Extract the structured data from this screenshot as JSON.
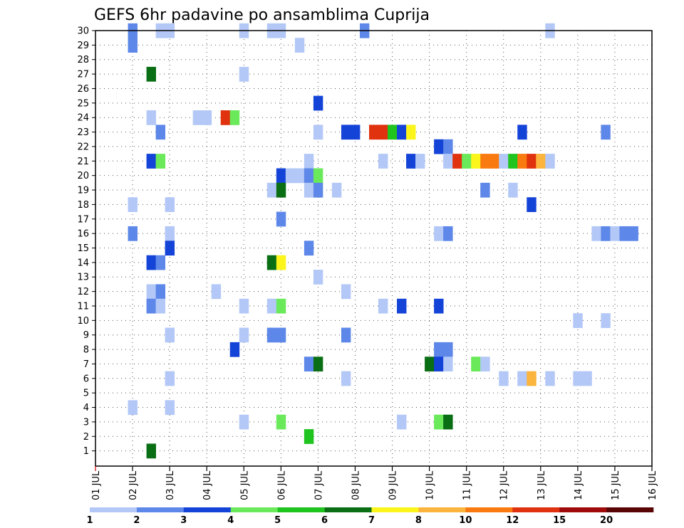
{
  "chart_data": {
    "type": "heatmap",
    "title": "GEFS 6hr padavine po ansamblima Cuprija",
    "xlabel": "",
    "ylabel": "",
    "x_ticks": [
      "01 JUL",
      "02 JUL",
      "03 JUL",
      "04 JUL",
      "05 JUL",
      "06 JUL",
      "07 JUL",
      "08 JUL",
      "09 JUL",
      "10 JUL",
      "11 JUL",
      "12 JUL",
      "13 JUL",
      "14 JUL",
      "15 JUL",
      "16 JUL"
    ],
    "y_ticks": [
      "1",
      "2",
      "3",
      "4",
      "5",
      "6",
      "7",
      "8",
      "9",
      "10",
      "11",
      "12",
      "13",
      "14",
      "15",
      "16",
      "17",
      "18",
      "19",
      "20",
      "21",
      "22",
      "23",
      "24",
      "25",
      "26",
      "27",
      "28",
      "29",
      "30"
    ],
    "xlim": [
      0,
      60
    ],
    "ylim": [
      0,
      30
    ],
    "x_unit": "6-hour steps from 01 JUL 00Z",
    "y_unit": "ensemble member",
    "grid": true,
    "colorbar": {
      "labels": [
        "1",
        "2",
        "3",
        "4",
        "5",
        "6",
        "7",
        "8",
        "10",
        "12",
        "15",
        "20"
      ],
      "colors": [
        "#b3c8f7",
        "#5d87e8",
        "#1443d8",
        "#6aea5a",
        "#1fc41f",
        "#0a6e14",
        "#fbf51c",
        "#fbb43d",
        "#f97a10",
        "#e0320f",
        "#a00a0a",
        "#5a0505"
      ]
    },
    "cells": [
      {
        "t": 4,
        "m": 30,
        "c": 1
      },
      {
        "t": 4,
        "m": 29,
        "c": 1
      },
      {
        "t": 7,
        "m": 30,
        "c": 0
      },
      {
        "t": 8,
        "m": 30,
        "c": 0
      },
      {
        "t": 16,
        "m": 30,
        "c": 0
      },
      {
        "t": 19,
        "m": 30,
        "c": 0
      },
      {
        "t": 20,
        "m": 30,
        "c": 0
      },
      {
        "t": 29,
        "m": 30,
        "c": 1
      },
      {
        "t": 49,
        "m": 30,
        "c": 0
      },
      {
        "t": 22,
        "m": 29,
        "c": 0
      },
      {
        "t": 6,
        "m": 27,
        "c": 5
      },
      {
        "t": 16,
        "m": 27,
        "c": 0
      },
      {
        "t": 24,
        "m": 25,
        "c": 2
      },
      {
        "t": 6,
        "m": 24,
        "c": 0
      },
      {
        "t": 11,
        "m": 24,
        "c": 0
      },
      {
        "t": 12,
        "m": 24,
        "c": 0
      },
      {
        "t": 14,
        "m": 24,
        "c": 9
      },
      {
        "t": 15,
        "m": 24,
        "c": 3
      },
      {
        "t": 7,
        "m": 23,
        "c": 1
      },
      {
        "t": 24,
        "m": 23,
        "c": 0
      },
      {
        "t": 27,
        "m": 23,
        "c": 2
      },
      {
        "t": 28,
        "m": 23,
        "c": 2
      },
      {
        "t": 30,
        "m": 23,
        "c": 9
      },
      {
        "t": 31,
        "m": 23,
        "c": 9
      },
      {
        "t": 32,
        "m": 23,
        "c": 4
      },
      {
        "t": 33,
        "m": 23,
        "c": 2
      },
      {
        "t": 34,
        "m": 23,
        "c": 6
      },
      {
        "t": 46,
        "m": 23,
        "c": 2
      },
      {
        "t": 55,
        "m": 23,
        "c": 1
      },
      {
        "t": 37,
        "m": 22,
        "c": 2
      },
      {
        "t": 38,
        "m": 22,
        "c": 1
      },
      {
        "t": 6,
        "m": 21,
        "c": 2
      },
      {
        "t": 7,
        "m": 21,
        "c": 3
      },
      {
        "t": 23,
        "m": 21,
        "c": 0
      },
      {
        "t": 31,
        "m": 21,
        "c": 0
      },
      {
        "t": 34,
        "m": 21,
        "c": 2
      },
      {
        "t": 35,
        "m": 21,
        "c": 0
      },
      {
        "t": 38,
        "m": 21,
        "c": 0
      },
      {
        "t": 39,
        "m": 21,
        "c": 9
      },
      {
        "t": 40,
        "m": 21,
        "c": 3
      },
      {
        "t": 41,
        "m": 21,
        "c": 6
      },
      {
        "t": 42,
        "m": 21,
        "c": 8
      },
      {
        "t": 43,
        "m": 21,
        "c": 8
      },
      {
        "t": 44,
        "m": 21,
        "c": 0
      },
      {
        "t": 45,
        "m": 21,
        "c": 4
      },
      {
        "t": 46,
        "m": 21,
        "c": 8
      },
      {
        "t": 47,
        "m": 21,
        "c": 9
      },
      {
        "t": 48,
        "m": 21,
        "c": 7
      },
      {
        "t": 49,
        "m": 21,
        "c": 0
      },
      {
        "t": 20,
        "m": 20,
        "c": 2
      },
      {
        "t": 21,
        "m": 20,
        "c": 0
      },
      {
        "t": 22,
        "m": 20,
        "c": 0
      },
      {
        "t": 23,
        "m": 20,
        "c": 1
      },
      {
        "t": 24,
        "m": 20,
        "c": 3
      },
      {
        "t": 19,
        "m": 19,
        "c": 0
      },
      {
        "t": 20,
        "m": 19,
        "c": 5
      },
      {
        "t": 23,
        "m": 19,
        "c": 0
      },
      {
        "t": 24,
        "m": 19,
        "c": 1
      },
      {
        "t": 26,
        "m": 19,
        "c": 0
      },
      {
        "t": 42,
        "m": 19,
        "c": 1
      },
      {
        "t": 45,
        "m": 19,
        "c": 0
      },
      {
        "t": 4,
        "m": 18,
        "c": 0
      },
      {
        "t": 8,
        "m": 18,
        "c": 0
      },
      {
        "t": 47,
        "m": 18,
        "c": 2
      },
      {
        "t": 20,
        "m": 17,
        "c": 1
      },
      {
        "t": 4,
        "m": 16,
        "c": 1
      },
      {
        "t": 8,
        "m": 16,
        "c": 0
      },
      {
        "t": 37,
        "m": 16,
        "c": 0
      },
      {
        "t": 38,
        "m": 16,
        "c": 1
      },
      {
        "t": 54,
        "m": 16,
        "c": 0
      },
      {
        "t": 55,
        "m": 16,
        "c": 1
      },
      {
        "t": 56,
        "m": 16,
        "c": 0
      },
      {
        "t": 57,
        "m": 16,
        "c": 1
      },
      {
        "t": 58,
        "m": 16,
        "c": 1
      },
      {
        "t": 8,
        "m": 15,
        "c": 2
      },
      {
        "t": 23,
        "m": 15,
        "c": 1
      },
      {
        "t": 6,
        "m": 14,
        "c": 2
      },
      {
        "t": 7,
        "m": 14,
        "c": 1
      },
      {
        "t": 19,
        "m": 14,
        "c": 5
      },
      {
        "t": 20,
        "m": 14,
        "c": 6
      },
      {
        "t": 24,
        "m": 13,
        "c": 0
      },
      {
        "t": 6,
        "m": 12,
        "c": 0
      },
      {
        "t": 7,
        "m": 12,
        "c": 1
      },
      {
        "t": 13,
        "m": 12,
        "c": 0
      },
      {
        "t": 27,
        "m": 12,
        "c": 0
      },
      {
        "t": 6,
        "m": 11,
        "c": 1
      },
      {
        "t": 7,
        "m": 11,
        "c": 0
      },
      {
        "t": 16,
        "m": 11,
        "c": 0
      },
      {
        "t": 19,
        "m": 11,
        "c": 0
      },
      {
        "t": 20,
        "m": 11,
        "c": 3
      },
      {
        "t": 31,
        "m": 11,
        "c": 0
      },
      {
        "t": 33,
        "m": 11,
        "c": 2
      },
      {
        "t": 37,
        "m": 11,
        "c": 2
      },
      {
        "t": 52,
        "m": 10,
        "c": 0
      },
      {
        "t": 55,
        "m": 10,
        "c": 0
      },
      {
        "t": 8,
        "m": 9,
        "c": 0
      },
      {
        "t": 16,
        "m": 9,
        "c": 0
      },
      {
        "t": 19,
        "m": 9,
        "c": 1
      },
      {
        "t": 20,
        "m": 9,
        "c": 1
      },
      {
        "t": 27,
        "m": 9,
        "c": 1
      },
      {
        "t": 15,
        "m": 8,
        "c": 2
      },
      {
        "t": 37,
        "m": 8,
        "c": 1
      },
      {
        "t": 38,
        "m": 8,
        "c": 1
      },
      {
        "t": 23,
        "m": 7,
        "c": 1
      },
      {
        "t": 24,
        "m": 7,
        "c": 5
      },
      {
        "t": 36,
        "m": 7,
        "c": 5
      },
      {
        "t": 37,
        "m": 7,
        "c": 2
      },
      {
        "t": 38,
        "m": 7,
        "c": 0
      },
      {
        "t": 41,
        "m": 7,
        "c": 3
      },
      {
        "t": 42,
        "m": 7,
        "c": 0
      },
      {
        "t": 8,
        "m": 6,
        "c": 0
      },
      {
        "t": 27,
        "m": 6,
        "c": 0
      },
      {
        "t": 44,
        "m": 6,
        "c": 0
      },
      {
        "t": 46,
        "m": 6,
        "c": 0
      },
      {
        "t": 47,
        "m": 6,
        "c": 7
      },
      {
        "t": 49,
        "m": 6,
        "c": 0
      },
      {
        "t": 52,
        "m": 6,
        "c": 0
      },
      {
        "t": 53,
        "m": 6,
        "c": 0
      },
      {
        "t": 4,
        "m": 4,
        "c": 0
      },
      {
        "t": 8,
        "m": 4,
        "c": 0
      },
      {
        "t": 16,
        "m": 3,
        "c": 0
      },
      {
        "t": 20,
        "m": 3,
        "c": 3
      },
      {
        "t": 33,
        "m": 3,
        "c": 0
      },
      {
        "t": 37,
        "m": 3,
        "c": 3
      },
      {
        "t": 38,
        "m": 3,
        "c": 5
      },
      {
        "t": 23,
        "m": 2,
        "c": 4
      },
      {
        "t": 6,
        "m": 1,
        "c": 5
      }
    ]
  }
}
